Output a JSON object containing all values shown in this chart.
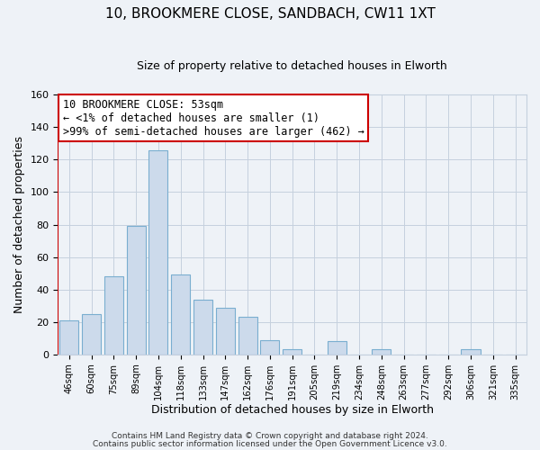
{
  "title": "10, BROOKMERE CLOSE, SANDBACH, CW11 1XT",
  "subtitle": "Size of property relative to detached houses in Elworth",
  "xlabel": "Distribution of detached houses by size in Elworth",
  "ylabel": "Number of detached properties",
  "bar_labels": [
    "46sqm",
    "60sqm",
    "75sqm",
    "89sqm",
    "104sqm",
    "118sqm",
    "133sqm",
    "147sqm",
    "162sqm",
    "176sqm",
    "191sqm",
    "205sqm",
    "219sqm",
    "234sqm",
    "248sqm",
    "263sqm",
    "277sqm",
    "292sqm",
    "306sqm",
    "321sqm",
    "335sqm"
  ],
  "bar_values": [
    21,
    25,
    48,
    79,
    126,
    49,
    34,
    29,
    23,
    9,
    3,
    0,
    8,
    0,
    3,
    0,
    0,
    0,
    3,
    0,
    0
  ],
  "bar_color": "#ccdaeb",
  "bar_edge_color": "#7aaed0",
  "property_line_x": 0,
  "property_line_color": "#cc0000",
  "ylim": [
    0,
    160
  ],
  "yticks": [
    0,
    20,
    40,
    60,
    80,
    100,
    120,
    140,
    160
  ],
  "annotation_box_text": "10 BROOKMERE CLOSE: 53sqm\n← <1% of detached houses are smaller (1)\n>99% of semi-detached houses are larger (462) →",
  "footer_line1": "Contains HM Land Registry data © Crown copyright and database right 2024.",
  "footer_line2": "Contains public sector information licensed under the Open Government Licence v3.0.",
  "background_color": "#eef2f7",
  "plot_bg_color": "#eef2f7",
  "grid_color": "#c5d0de",
  "title_fontsize": 11,
  "subtitle_fontsize": 9
}
